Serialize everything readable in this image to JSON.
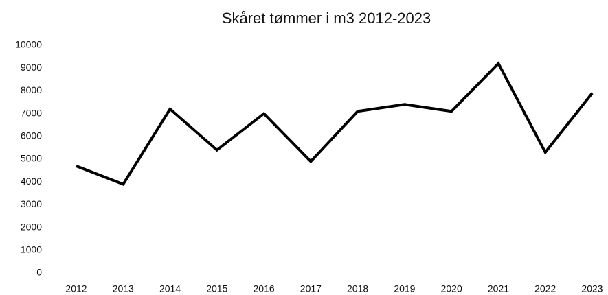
{
  "chart_data": {
    "type": "line",
    "title": "Skåret tømmer i m3 2012-2023",
    "categories": [
      "2012",
      "2013",
      "2014",
      "2015",
      "2016",
      "2017",
      "2018",
      "2019",
      "2020",
      "2021",
      "2022",
      "2023"
    ],
    "series": [
      {
        "name": null,
        "color": "#000000",
        "values": [
          4700,
          3900,
          7200,
          5400,
          7000,
          4900,
          7100,
          7400,
          7100,
          9200,
          5300,
          7900
        ]
      }
    ],
    "ylim": [
      0,
      10000
    ],
    "yticks": [
      0,
      1000,
      2000,
      3000,
      4000,
      5000,
      6000,
      7000,
      8000,
      9000,
      10000
    ],
    "grid": false
  }
}
